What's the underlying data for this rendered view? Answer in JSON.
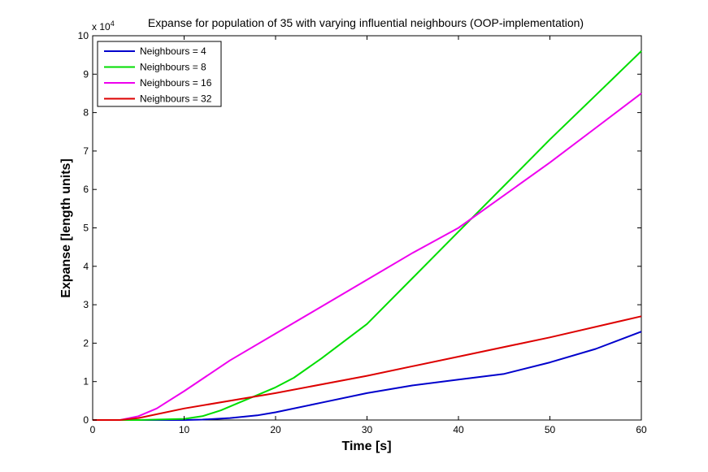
{
  "chart_data": {
    "type": "line",
    "title": "Expanse for population of 35 with varying influential neighbours (OOP-implementation)",
    "exponent_label": "x 10",
    "exponent_power": "4",
    "xlabel": "Time [s]",
    "ylabel": "Expanse [length units]",
    "xlim": [
      0,
      60
    ],
    "ylim": [
      0,
      100000
    ],
    "x_ticks": [
      0,
      10,
      20,
      30,
      40,
      50,
      60
    ],
    "y_ticks": [
      0,
      1,
      2,
      3,
      4,
      5,
      6,
      7,
      8,
      9,
      10
    ],
    "y_tick_scale": 10000,
    "grid": false,
    "legend_position": "top-left",
    "series": [
      {
        "name": "Neighbours = 4",
        "color": "#0000cc",
        "x": [
          0,
          5,
          10,
          12,
          15,
          18,
          20,
          25,
          30,
          35,
          40,
          45,
          50,
          55,
          60
        ],
        "y": [
          0,
          0,
          0,
          100,
          500,
          1200,
          2000,
          4500,
          7000,
          9000,
          10500,
          12000,
          15000,
          18500,
          23000
        ]
      },
      {
        "name": "Neighbours = 8",
        "color": "#00dd00",
        "x": [
          0,
          5,
          10,
          12,
          14,
          16,
          18,
          20,
          22,
          25,
          30,
          35,
          40,
          45,
          50,
          55,
          60
        ],
        "y": [
          0,
          0,
          300,
          1000,
          2500,
          4500,
          6500,
          8500,
          11000,
          16000,
          25000,
          37000,
          49000,
          61000,
          73000,
          84500,
          96000
        ]
      },
      {
        "name": "Neighbours = 16",
        "color": "#ee00ee",
        "x": [
          0,
          3,
          5,
          7,
          8,
          10,
          15,
          20,
          25,
          30,
          35,
          40,
          45,
          50,
          55,
          60
        ],
        "y": [
          0,
          0,
          1000,
          3000,
          4500,
          7500,
          15500,
          22500,
          29500,
          36500,
          43500,
          50000,
          58500,
          67000,
          76000,
          85000
        ]
      },
      {
        "name": "Neighbours = 32",
        "color": "#dd0000",
        "x": [
          0,
          3,
          5,
          10,
          20,
          30,
          40,
          50,
          60
        ],
        "y": [
          0,
          0,
          500,
          3000,
          7000,
          11500,
          16500,
          21500,
          27000
        ]
      }
    ]
  }
}
